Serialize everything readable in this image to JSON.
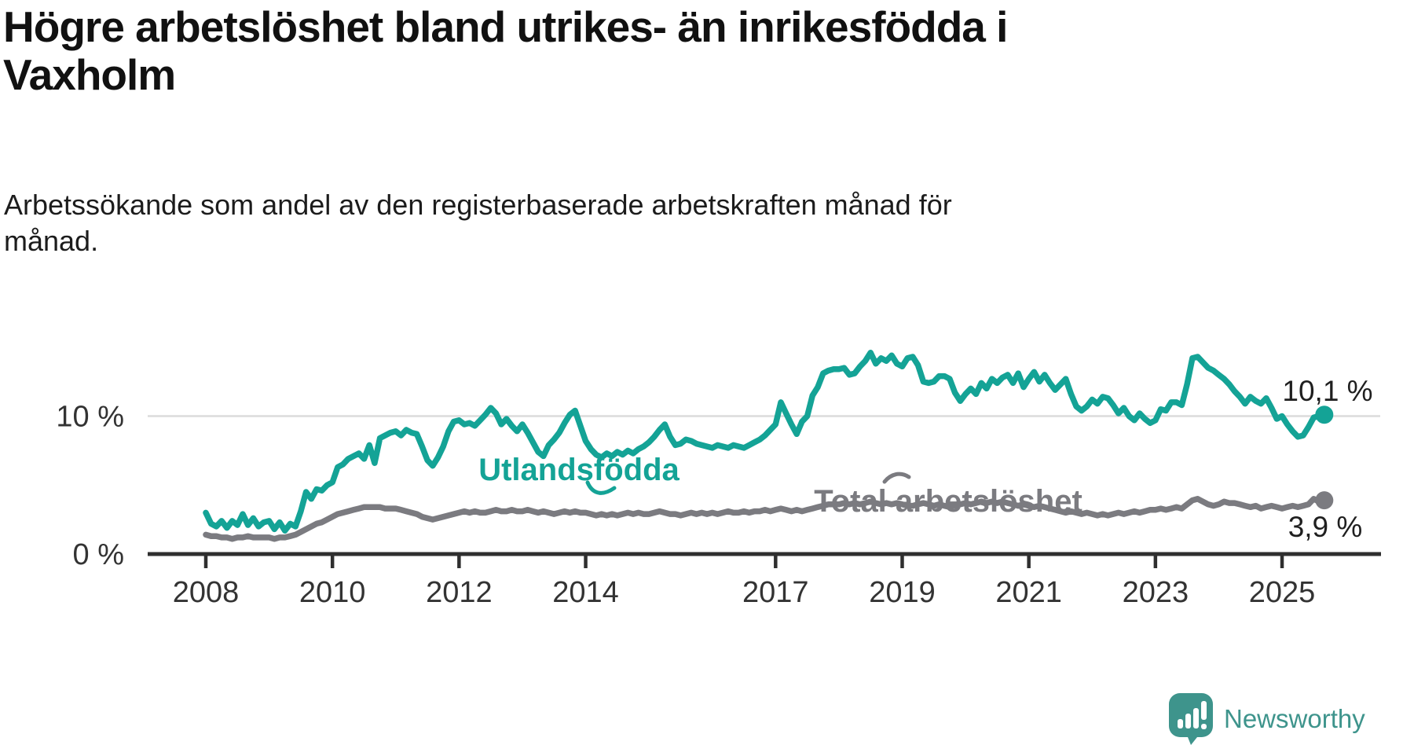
{
  "title": {
    "lines": [
      "Högre arbetslöshet bland utrikes- än inrikesfödda i",
      "Vaxholm"
    ]
  },
  "subtitle": {
    "lines": [
      "Arbetssökande som andel av den registerbaserade arbetskraften månad för",
      "månad."
    ]
  },
  "brand": {
    "name": "Newsworthy",
    "color": "#3e948c"
  },
  "chart_data": {
    "type": "line",
    "frequency": "monthly",
    "x_start_year": 2008,
    "x_end": "2025-09",
    "unit": "%",
    "ylim": [
      0,
      16
    ],
    "grid": "single horizontal gridline at 10 %",
    "x_tick_labels": [
      "2008",
      "2010",
      "2012",
      "2014",
      "2017",
      "2019",
      "2021",
      "2023",
      "2025"
    ],
    "y_ticks": [
      {
        "label": "0 %",
        "value": 0
      },
      {
        "label": "10 %",
        "value": 10
      }
    ],
    "series": [
      {
        "name": "Utlandsfödda",
        "color": "#14a396",
        "end_label": "10,1 %",
        "end_value": 10.1,
        "values": [
          3.0,
          2.2,
          2.0,
          2.4,
          1.9,
          2.4,
          2.1,
          2.9,
          2.1,
          2.6,
          2.0,
          2.3,
          2.4,
          1.8,
          2.3,
          1.7,
          2.2,
          2.0,
          3.1,
          4.5,
          4.0,
          4.7,
          4.6,
          5.0,
          5.2,
          6.3,
          6.5,
          6.9,
          7.1,
          7.3,
          6.9,
          7.9,
          6.6,
          8.4,
          8.6,
          8.8,
          8.9,
          8.6,
          9.0,
          8.8,
          8.7,
          7.8,
          6.8,
          6.4,
          7.0,
          7.8,
          8.9,
          9.6,
          9.7,
          9.4,
          9.5,
          9.3,
          9.7,
          10.1,
          10.6,
          10.2,
          9.4,
          9.8,
          9.3,
          8.9,
          9.4,
          8.8,
          8.1,
          7.4,
          7.1,
          7.9,
          8.3,
          8.8,
          9.5,
          10.1,
          10.4,
          9.3,
          8.2,
          7.6,
          7.2,
          7.0,
          7.3,
          7.1,
          7.4,
          7.2,
          7.5,
          7.3,
          7.6,
          7.8,
          8.1,
          8.5,
          9.0,
          9.4,
          8.5,
          7.9,
          8.0,
          8.3,
          8.2,
          8.0,
          7.9,
          7.8,
          7.7,
          7.9,
          7.8,
          7.7,
          7.9,
          7.8,
          7.7,
          7.9,
          8.1,
          8.3,
          8.6,
          9.0,
          9.4,
          11.0,
          10.2,
          9.4,
          8.7,
          9.6,
          10.0,
          11.5,
          12.1,
          13.1,
          13.3,
          13.4,
          13.4,
          13.5,
          13.0,
          13.1,
          13.6,
          14.0,
          14.6,
          13.8,
          14.2,
          14.0,
          14.4,
          13.8,
          13.6,
          14.2,
          14.3,
          13.7,
          12.5,
          12.4,
          12.5,
          12.9,
          12.9,
          12.7,
          11.7,
          11.1,
          11.6,
          12.0,
          11.6,
          12.4,
          12.0,
          12.7,
          12.4,
          12.8,
          13.0,
          12.4,
          13.1,
          12.1,
          12.7,
          13.2,
          12.5,
          13.0,
          12.4,
          11.9,
          12.3,
          12.7,
          11.6,
          10.7,
          10.4,
          10.7,
          11.2,
          10.9,
          11.4,
          11.3,
          10.8,
          10.2,
          10.6,
          10.0,
          9.7,
          10.2,
          9.8,
          9.5,
          9.7,
          10.5,
          10.4,
          11.0,
          11.0,
          10.8,
          12.3,
          14.2,
          14.3,
          13.9,
          13.5,
          13.3,
          13.0,
          12.7,
          12.3,
          11.8,
          11.4,
          10.9,
          11.4,
          11.1,
          10.9,
          11.3,
          10.6,
          9.8,
          10.0,
          9.4,
          8.9,
          8.5,
          8.6,
          9.2,
          9.9,
          10.0,
          10.1
        ]
      },
      {
        "name": "Total arbetslöshet",
        "color": "#7b7b80",
        "end_label": "3,9 %",
        "end_value": 3.9,
        "values": [
          1.4,
          1.3,
          1.3,
          1.2,
          1.2,
          1.1,
          1.2,
          1.2,
          1.3,
          1.2,
          1.2,
          1.2,
          1.2,
          1.1,
          1.2,
          1.2,
          1.3,
          1.4,
          1.6,
          1.8,
          2.0,
          2.2,
          2.3,
          2.5,
          2.7,
          2.9,
          3.0,
          3.1,
          3.2,
          3.3,
          3.4,
          3.4,
          3.4,
          3.4,
          3.3,
          3.3,
          3.3,
          3.2,
          3.1,
          3.0,
          2.9,
          2.7,
          2.6,
          2.5,
          2.6,
          2.7,
          2.8,
          2.9,
          3.0,
          3.1,
          3.0,
          3.1,
          3.0,
          3.0,
          3.1,
          3.2,
          3.1,
          3.1,
          3.2,
          3.1,
          3.1,
          3.2,
          3.1,
          3.0,
          3.1,
          3.0,
          2.9,
          3.0,
          3.1,
          3.0,
          3.1,
          3.0,
          3.0,
          2.9,
          2.8,
          2.9,
          2.8,
          2.9,
          2.8,
          2.9,
          3.0,
          2.9,
          3.0,
          2.9,
          2.9,
          3.0,
          3.1,
          3.0,
          2.9,
          2.9,
          2.8,
          2.9,
          3.0,
          2.9,
          3.0,
          2.9,
          3.0,
          2.9,
          3.0,
          3.1,
          3.0,
          3.0,
          3.1,
          3.0,
          3.1,
          3.1,
          3.2,
          3.1,
          3.2,
          3.3,
          3.2,
          3.1,
          3.2,
          3.1,
          3.2,
          3.3,
          3.4,
          3.5,
          3.6,
          3.6,
          3.6,
          3.7,
          3.6,
          3.7,
          3.6,
          3.7,
          3.8,
          3.7,
          3.6,
          3.7,
          3.6,
          3.7,
          3.6,
          3.5,
          3.5,
          3.6,
          3.7,
          3.6,
          3.5,
          3.6,
          3.5,
          3.4,
          3.5,
          3.6,
          3.7,
          3.6,
          3.7,
          3.8,
          3.7,
          3.8,
          3.7,
          3.8,
          3.7,
          3.6,
          3.5,
          3.6,
          3.5,
          3.4,
          3.5,
          3.4,
          3.3,
          3.2,
          3.1,
          3.0,
          3.1,
          3.0,
          2.9,
          3.0,
          2.9,
          2.8,
          2.9,
          2.8,
          2.9,
          3.0,
          2.9,
          3.0,
          3.1,
          3.0,
          3.1,
          3.2,
          3.2,
          3.3,
          3.2,
          3.3,
          3.4,
          3.3,
          3.6,
          3.9,
          4.0,
          3.8,
          3.6,
          3.5,
          3.6,
          3.8,
          3.7,
          3.7,
          3.6,
          3.5,
          3.4,
          3.5,
          3.3,
          3.4,
          3.5,
          3.4,
          3.3,
          3.4,
          3.5,
          3.4,
          3.5,
          3.6,
          4.0,
          3.8,
          3.9
        ]
      }
    ]
  }
}
